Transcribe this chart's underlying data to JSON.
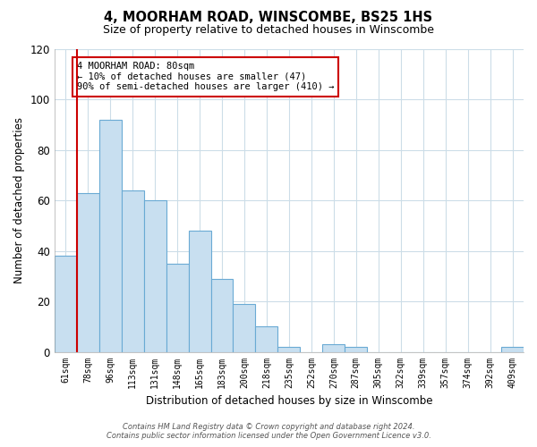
{
  "title": "4, MOORHAM ROAD, WINSCOMBE, BS25 1HS",
  "subtitle": "Size of property relative to detached houses in Winscombe",
  "xlabel": "Distribution of detached houses by size in Winscombe",
  "ylabel": "Number of detached properties",
  "bar_labels": [
    "61sqm",
    "78sqm",
    "96sqm",
    "113sqm",
    "131sqm",
    "148sqm",
    "165sqm",
    "183sqm",
    "200sqm",
    "218sqm",
    "235sqm",
    "252sqm",
    "270sqm",
    "287sqm",
    "305sqm",
    "322sqm",
    "339sqm",
    "357sqm",
    "374sqm",
    "392sqm",
    "409sqm"
  ],
  "bar_values": [
    38,
    63,
    92,
    64,
    60,
    35,
    48,
    29,
    19,
    10,
    2,
    0,
    3,
    2,
    0,
    0,
    0,
    0,
    0,
    0,
    2
  ],
  "bar_color": "#c8dff0",
  "bar_edge_color": "#6aaad4",
  "vline_color": "#cc0000",
  "vline_index": 1,
  "ylim": [
    0,
    120
  ],
  "yticks": [
    0,
    20,
    40,
    60,
    80,
    100,
    120
  ],
  "annotation_title": "4 MOORHAM ROAD: 80sqm",
  "annotation_line1": "← 10% of detached houses are smaller (47)",
  "annotation_line2": "90% of semi-detached houses are larger (410) →",
  "footer_line1": "Contains HM Land Registry data © Crown copyright and database right 2024.",
  "footer_line2": "Contains public sector information licensed under the Open Government Licence v3.0.",
  "background_color": "#ffffff",
  "grid_color": "#ccdde8",
  "title_fontsize": 10.5,
  "subtitle_fontsize": 9
}
